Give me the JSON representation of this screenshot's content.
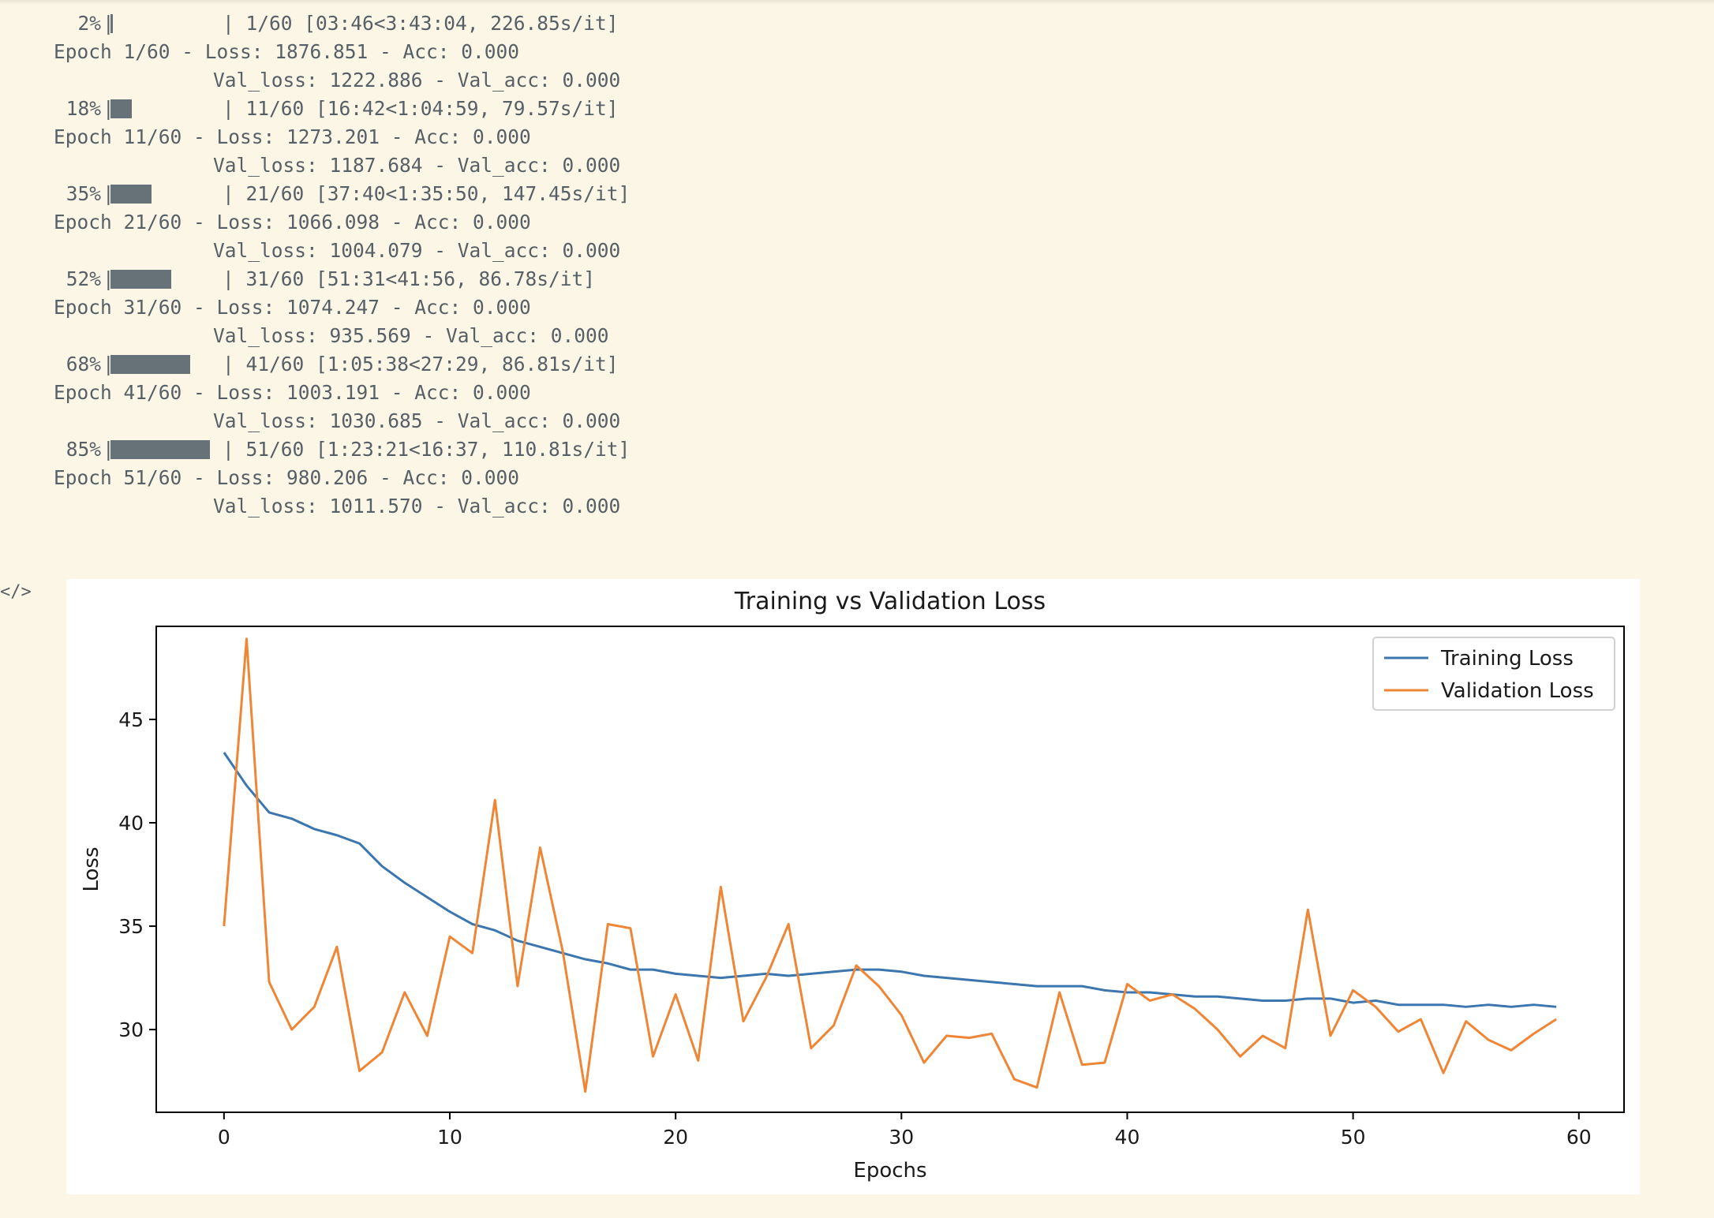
{
  "progress": [
    {
      "percent": "2%",
      "fraction": 0.02,
      "bar_left": "|",
      "tail": "| 1/60 [03:46<3:43:04, 226.85s/it]",
      "epoch": "Epoch 1/60 - Loss: 1876.851 - Acc: 0.000",
      "val": "Val_loss: 1222.886 - Val_acc: 0.000"
    },
    {
      "percent": "18%",
      "fraction": 0.18,
      "bar_left": "|",
      "tail": "| 11/60 [16:42<1:04:59, 79.57s/it]",
      "epoch": "Epoch 11/60 - Loss: 1273.201 - Acc: 0.000",
      "val": "Val_loss: 1187.684 - Val_acc: 0.000"
    },
    {
      "percent": "35%",
      "fraction": 0.35,
      "bar_left": "|",
      "tail": "| 21/60 [37:40<1:35:50, 147.45s/it]",
      "epoch": "Epoch 21/60 - Loss: 1066.098 - Acc: 0.000",
      "val": "Val_loss: 1004.079 - Val_acc: 0.000"
    },
    {
      "percent": "52%",
      "fraction": 0.52,
      "bar_left": "|",
      "tail": "| 31/60 [51:31<41:56, 86.78s/it]",
      "epoch": "Epoch 31/60 - Loss: 1074.247 - Acc: 0.000",
      "val": "Val_loss: 935.569 - Val_acc: 0.000"
    },
    {
      "percent": "68%",
      "fraction": 0.68,
      "bar_left": "|",
      "tail": "| 41/60 [1:05:38<27:29, 86.81s/it]",
      "epoch": "Epoch 41/60 - Loss: 1003.191 - Acc: 0.000",
      "val": "Val_loss: 1030.685 - Val_acc: 0.000"
    },
    {
      "percent": "85%",
      "fraction": 0.85,
      "bar_left": "|",
      "tail": "| 51/60 [1:23:21<16:37, 110.81s/it]",
      "epoch": "Epoch 51/60 - Loss: 980.206 - Acc: 0.000",
      "val": "Val_loss: 1011.570 - Val_acc: 0.000"
    }
  ],
  "output_marker": "</>",
  "colors": {
    "training": "#3b76af",
    "validation": "#ef8636",
    "log_text": "#566066",
    "background": "#fcf6e6"
  },
  "chart_data": {
    "type": "line",
    "title": "Training vs Validation Loss",
    "xlabel": "Epochs",
    "ylabel": "Loss",
    "xlim": [
      -3,
      62
    ],
    "ylim": [
      26.0,
      49.5
    ],
    "xticks": [
      0,
      10,
      20,
      30,
      40,
      50,
      60
    ],
    "yticks": [
      30,
      35,
      40,
      45
    ],
    "legend": "top-right",
    "grid": false,
    "x": [
      0,
      1,
      2,
      3,
      4,
      5,
      6,
      7,
      8,
      9,
      10,
      11,
      12,
      13,
      14,
      15,
      16,
      17,
      18,
      19,
      20,
      21,
      22,
      23,
      24,
      25,
      26,
      27,
      28,
      29,
      30,
      31,
      32,
      33,
      34,
      35,
      36,
      37,
      38,
      39,
      40,
      41,
      42,
      43,
      44,
      45,
      46,
      47,
      48,
      49,
      50,
      51,
      52,
      53,
      54,
      55,
      56,
      57,
      58,
      59
    ],
    "series": [
      {
        "name": "Training Loss",
        "color": "#3b76af",
        "values": [
          43.4,
          41.8,
          40.5,
          40.2,
          39.7,
          39.4,
          39.0,
          37.9,
          37.1,
          36.4,
          35.7,
          35.1,
          34.8,
          34.3,
          34.0,
          33.7,
          33.4,
          33.2,
          32.9,
          32.9,
          32.7,
          32.6,
          32.5,
          32.6,
          32.7,
          32.6,
          32.7,
          32.8,
          32.9,
          32.9,
          32.8,
          32.6,
          32.5,
          32.4,
          32.3,
          32.2,
          32.1,
          32.1,
          32.1,
          31.9,
          31.8,
          31.8,
          31.7,
          31.6,
          31.6,
          31.5,
          31.4,
          31.4,
          31.5,
          31.5,
          31.3,
          31.4,
          31.2,
          31.2,
          31.2,
          31.1,
          31.2,
          31.1,
          31.2,
          31.1
        ]
      },
      {
        "name": "Validation Loss",
        "color": "#ef8636",
        "values": [
          35.0,
          48.9,
          32.3,
          30.0,
          31.1,
          34.0,
          28.0,
          28.9,
          31.8,
          29.7,
          34.5,
          33.7,
          41.1,
          32.1,
          38.8,
          33.8,
          27.0,
          35.1,
          34.9,
          28.7,
          31.7,
          28.5,
          36.9,
          30.4,
          32.5,
          35.1,
          29.1,
          30.2,
          33.1,
          32.1,
          30.7,
          28.4,
          29.7,
          29.6,
          29.8,
          27.6,
          27.2,
          31.8,
          28.3,
          28.4,
          32.2,
          31.4,
          31.7,
          31.0,
          30.0,
          28.7,
          29.7,
          29.1,
          35.8,
          29.7,
          31.9,
          31.1,
          29.9,
          30.5,
          27.9,
          30.4,
          29.5,
          29.0,
          29.8,
          30.5
        ]
      }
    ]
  }
}
